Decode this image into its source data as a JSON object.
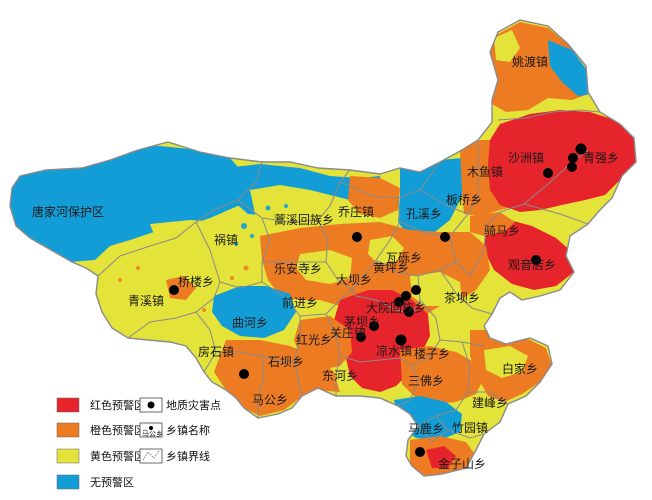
{
  "map": {
    "colors": {
      "red": "#e5242b",
      "orange": "#ed7b22",
      "yellow": "#e4e33a",
      "blue": "#139dd6",
      "boundary": "#8a8a8a",
      "disaster_point": "#000000"
    },
    "labels": {
      "yaodu": "姚渡镇",
      "shazhou": "沙洲镇",
      "qingxiang": "青强乡",
      "muyu": "木鱼镇",
      "tangjiahe": "唐家河保护区",
      "qiaozhuang": "乔庄镇",
      "kongxi": "孔溪乡",
      "banqiao": "板桥乡",
      "bangu": "蒿溪回族乡",
      "luma": "骑马乡",
      "zhuazhen": "祸镇",
      "wali": "瓦砾乡",
      "guanyin": "观音店乡",
      "qiaolou": "桥楼乡",
      "leanshi": "乐安寺乡",
      "daba": "大坝乡",
      "huangping": "黄坪乡",
      "qingxi": "青溪镇",
      "qianjin": "前进乡",
      "dayuan": "大院回族乡",
      "chaba": "茶坝乡",
      "quhe": "曲河乡",
      "guanzhuang": "关庄镇",
      "maojiao": "茅坝乡",
      "liangshui": "凉水镇",
      "hongguang": "红光乡",
      "fangshi": "房石镇",
      "shiba": "石坝乡",
      "louzi": "楼子乡",
      "sanguo": "三佛乡",
      "baijia": "白家乡",
      "donghe": "东河乡",
      "jianfeng": "建峰乡",
      "magong": "马公乡",
      "malu": "马鹿乡",
      "zhuyuan": "竹园镇",
      "jinzishan": "金子山乡"
    },
    "legend": {
      "red": "红色预警区",
      "orange": "橙色预警区",
      "yellow": "黄色预警区",
      "blue": "无预警区",
      "point": "地质灾害点",
      "township_name": "乡镇名称",
      "township_name_sample": "马公乡",
      "boundary": "乡镇界线"
    }
  }
}
